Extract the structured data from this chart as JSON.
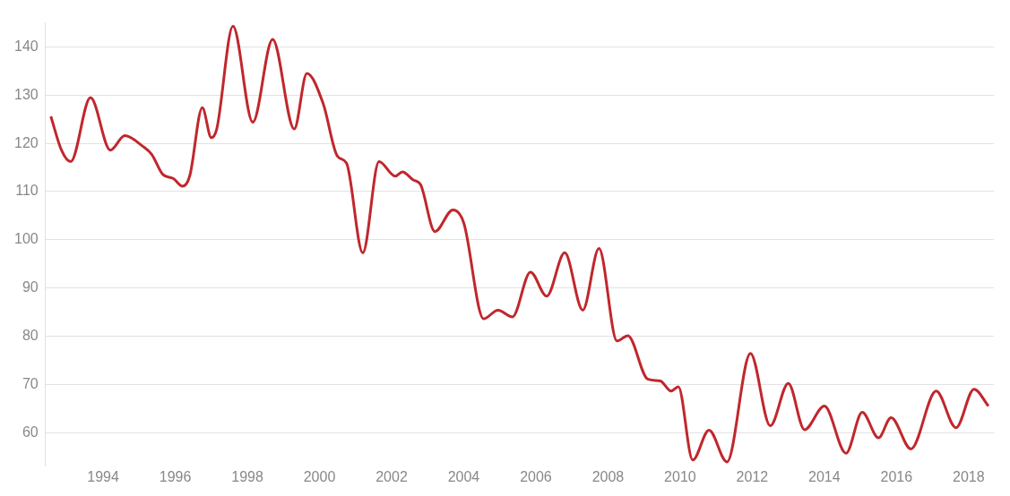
{
  "chart_data": {
    "type": "line",
    "color": "#c0272d",
    "grid": "y",
    "legend": false,
    "marker": "none",
    "line_style": "solid",
    "x": [
      1992.55,
      1992.85,
      1993.1,
      1993.65,
      1994.2,
      1994.6,
      1995.1,
      1995.35,
      1995.65,
      1995.95,
      1996.2,
      1996.4,
      1996.75,
      1997.0,
      1997.15,
      1997.6,
      1998.15,
      1998.7,
      1999.3,
      1999.65,
      2000.1,
      2000.5,
      2000.75,
      2001.2,
      2001.65,
      2002.1,
      2002.3,
      2002.6,
      2002.8,
      2003.2,
      2003.7,
      2004.0,
      2004.55,
      2004.95,
      2005.35,
      2005.85,
      2006.3,
      2006.8,
      2007.3,
      2007.75,
      2008.25,
      2008.55,
      2009.1,
      2009.45,
      2009.75,
      2009.95,
      2010.35,
      2010.8,
      2011.3,
      2011.95,
      2012.5,
      2013.0,
      2013.45,
      2014.0,
      2014.6,
      2015.05,
      2015.5,
      2015.85,
      2016.4,
      2017.1,
      2017.65,
      2018.15,
      2018.55
    ],
    "values": [
      125.6,
      118.5,
      116.2,
      129.5,
      118.6,
      121.6,
      119.4,
      117.7,
      113.6,
      112.7,
      111.1,
      113.2,
      127.4,
      121.2,
      123,
      144.3,
      124.4,
      141.6,
      123,
      134.5,
      128.3,
      117.3,
      115.9,
      97.3,
      116.2,
      113.2,
      114.1,
      112.4,
      111.5,
      101.7,
      106.2,
      103.5,
      83.6,
      85.4,
      84,
      93.3,
      88.3,
      97.3,
      85.4,
      98.2,
      79,
      80.1,
      71.1,
      70.7,
      68.6,
      69.5,
      54.3,
      60.5,
      53.9,
      76.4,
      61.4,
      70.2,
      60.6,
      65.5,
      55.7,
      64.2,
      58.9,
      63.1,
      56.6,
      68.6,
      61,
      69,
      65.5
    ],
    "xlim": [
      1992.4,
      2018.7
    ],
    "xticks": [
      1994,
      1996,
      1998,
      2000,
      2002,
      2004,
      2006,
      2008,
      2010,
      2012,
      2014,
      2016,
      2018
    ],
    "ylim": [
      53,
      145
    ],
    "yticks": [
      60,
      70,
      80,
      90,
      100,
      110,
      120,
      130,
      140
    ]
  }
}
